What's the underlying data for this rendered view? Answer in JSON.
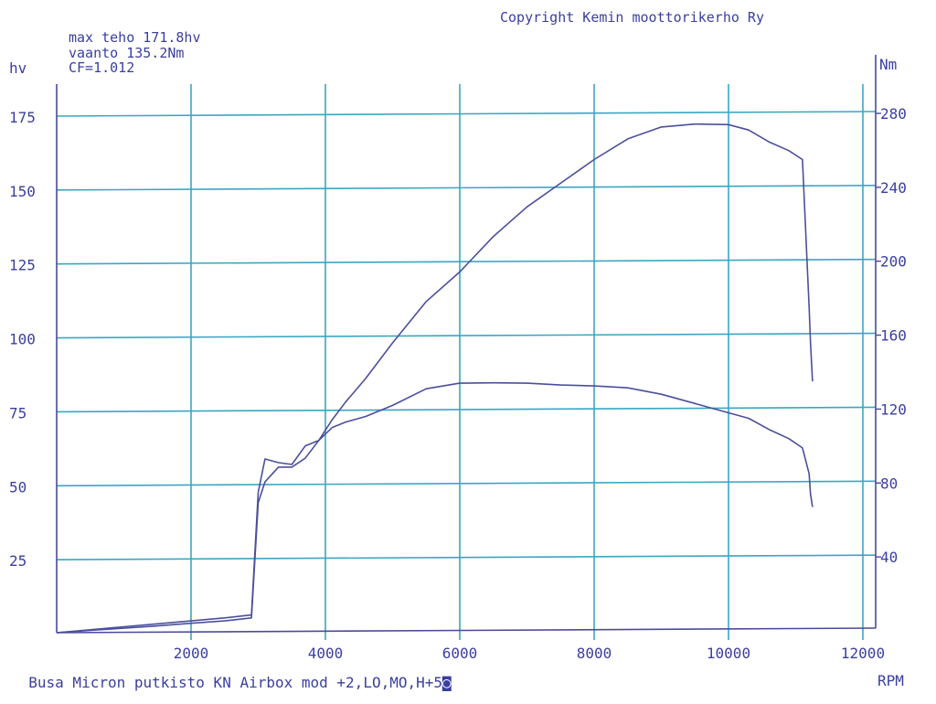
{
  "header": {
    "copyright": "Copyright Kemin moottorikerho Ry",
    "info_lines": [
      "max teho 171.8hv",
      "vaanto 135.2Nm",
      "CF=1.012"
    ]
  },
  "footer": {
    "caption": "Busa Micron putkisto KN Airbox mod +2,LO,MO,H+5",
    "caption_glyph": "◙"
  },
  "colors": {
    "grid": "#3aa6c2",
    "curve": "#4b4f9c",
    "text": "#3a3fa0",
    "axis": "#4a4a9a"
  },
  "chart_data": {
    "type": "line",
    "title": "",
    "xlabel": "RPM",
    "ylabel_left": "hv",
    "ylabel_right": "Nm",
    "xlim": [
      0,
      12000
    ],
    "ylim_left": [
      0,
      175
    ],
    "ylim_right": [
      0,
      280
    ],
    "x_ticks": [
      2000,
      4000,
      6000,
      8000,
      10000,
      12000
    ],
    "y_ticks_left": [
      25,
      50,
      75,
      100,
      125,
      150,
      175
    ],
    "y_ticks_right": [
      40,
      80,
      120,
      160,
      200,
      240,
      280
    ],
    "grid": true,
    "series": [
      {
        "axis": "left",
        "x": [
          0,
          500,
          1000,
          1500,
          2000,
          2500,
          2900,
          3000,
          3100,
          3300,
          3500,
          3700,
          3900,
          4100,
          4300,
          4600,
          5000,
          5500,
          6000,
          6500,
          7000,
          7500,
          8000,
          8500,
          9000,
          9500,
          10000,
          10300,
          10600,
          10900,
          11100,
          11200,
          11220,
          11250
        ],
        "y": [
          0,
          0.8,
          1.5,
          2.3,
          3.2,
          4.0,
          5.0,
          44,
          51,
          56,
          56,
          59,
          65,
          72,
          78,
          86,
          98,
          112,
          122,
          134,
          144,
          152,
          160,
          167,
          171,
          172,
          171.8,
          170,
          166,
          163,
          160,
          110,
          98,
          85
        ]
      },
      {
        "axis": "right",
        "x": [
          0,
          500,
          1000,
          1500,
          2000,
          2500,
          2900,
          3000,
          3100,
          3300,
          3500,
          3700,
          3900,
          4100,
          4300,
          4600,
          5000,
          5500,
          6000,
          6500,
          7000,
          7500,
          8000,
          8500,
          9000,
          9500,
          10000,
          10300,
          10600,
          10900,
          11100,
          11200,
          11220,
          11250
        ],
        "y": [
          0,
          1.6,
          3.2,
          4.8,
          6.4,
          8.0,
          9.6,
          76,
          94,
          92,
          91,
          101,
          104,
          111,
          114,
          117,
          123,
          132,
          135,
          135.2,
          135,
          134,
          133.5,
          132.5,
          129,
          124,
          119,
          116,
          110,
          105,
          100,
          86,
          75,
          68
        ]
      }
    ]
  }
}
